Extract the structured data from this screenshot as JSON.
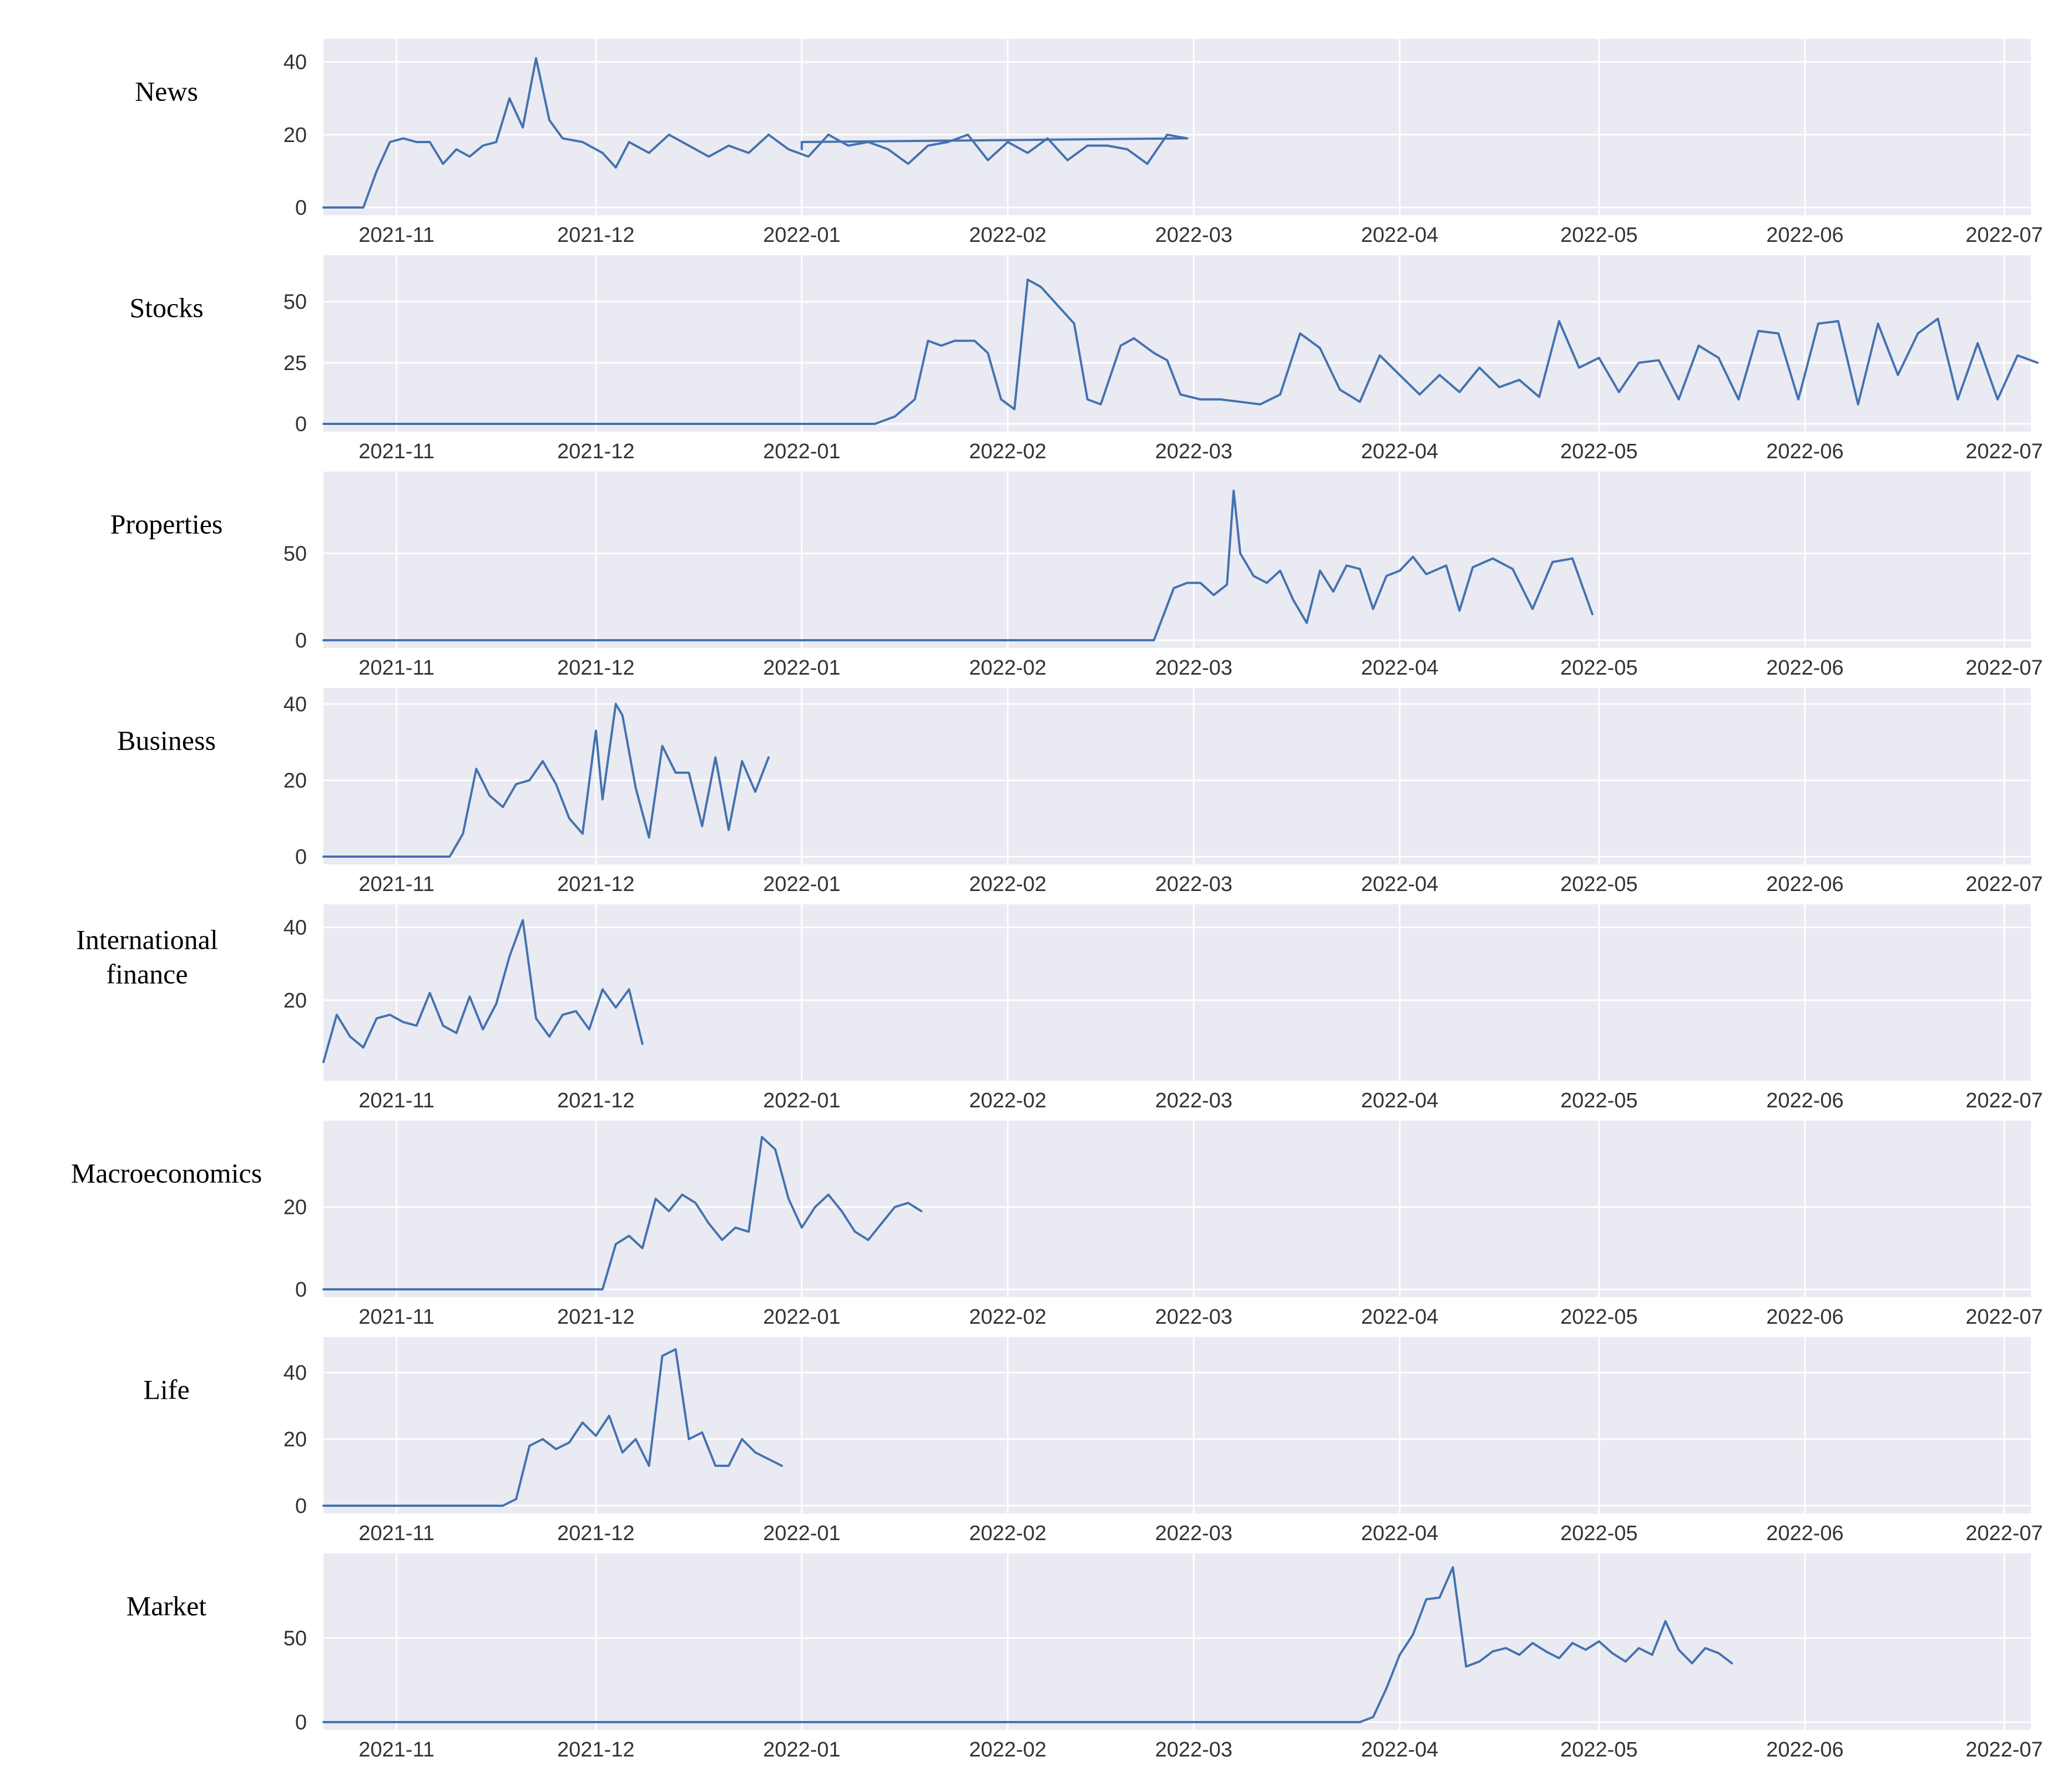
{
  "chart_data": [
    {
      "type": "line",
      "label": "News",
      "ylim": [
        0,
        43
      ],
      "yticks": [
        {
          "value": 0,
          "label": "0"
        },
        {
          "value": 20,
          "label": "20"
        },
        {
          "value": 40,
          "label": "40"
        }
      ],
      "points": [
        [
          "2021-10-21",
          0
        ],
        [
          "2021-10-24",
          0
        ],
        [
          "2021-10-27",
          0
        ],
        [
          "2021-10-29",
          10
        ],
        [
          "2021-10-31",
          18
        ],
        [
          "2021-11-02",
          19
        ],
        [
          "2021-11-04",
          18
        ],
        [
          "2021-11-06",
          18
        ],
        [
          "2021-11-08",
          12
        ],
        [
          "2021-11-10",
          16
        ],
        [
          "2021-11-12",
          14
        ],
        [
          "2021-11-14",
          17
        ],
        [
          "2021-11-16",
          18
        ],
        [
          "2021-11-18",
          30
        ],
        [
          "2021-11-20",
          22
        ],
        [
          "2021-11-22",
          41
        ],
        [
          "2021-11-24",
          24
        ],
        [
          "2021-11-26",
          19
        ],
        [
          "2021-11-29",
          18
        ],
        [
          "2021-12-02",
          15
        ],
        [
          "2021-12-04",
          11
        ],
        [
          "2021-12-06",
          18
        ],
        [
          "2021-12-09",
          15
        ],
        [
          "2021-12-12",
          20
        ],
        [
          "2021-12-15",
          17
        ],
        [
          "2021-12-18",
          14
        ],
        [
          "2021-12-21",
          17
        ],
        [
          "2021-12-24",
          15
        ],
        [
          "2021-12-27",
          20
        ],
        [
          "2021-12-30",
          16
        ],
        [
          "2022-01-02",
          14
        ],
        [
          "2022-01-05",
          20
        ],
        [
          "2022-01-08",
          17
        ],
        [
          "2022-01-11",
          18
        ],
        [
          "2022-01-14",
          16
        ],
        [
          "2022-01-17",
          12
        ],
        [
          "2022-01-20",
          17
        ],
        [
          "2022-01-23",
          18
        ],
        [
          "2022-01-26",
          20
        ],
        [
          "2022-01-29",
          13
        ],
        [
          "2022-02-01",
          18
        ],
        [
          "2022-02-04",
          15
        ],
        [
          "2022-02-07",
          19
        ],
        [
          "2022-02-10",
          13
        ],
        [
          "2022-02-13",
          17
        ],
        [
          "2022-02-16",
          17
        ],
        [
          "2022-02-19",
          16
        ],
        [
          "2022-02-22",
          12
        ],
        [
          "2022-02-25",
          20
        ],
        [
          "2022-02-28",
          19
        ],
        [
          "2022-01-01",
          18
        ],
        [
          "2022-01-01",
          16
        ]
      ],
      "color": "#4472b0"
    },
    {
      "type": "line",
      "label": "Stocks",
      "ylim": [
        0,
        64
      ],
      "yticks": [
        {
          "value": 0,
          "label": "0"
        },
        {
          "value": 25,
          "label": "25"
        },
        {
          "value": 50,
          "label": "50"
        }
      ],
      "points": [
        [
          "2021-10-21",
          0
        ],
        [
          "2022-01-12",
          0
        ],
        [
          "2022-01-15",
          3
        ],
        [
          "2022-01-18",
          10
        ],
        [
          "2022-01-20",
          34
        ],
        [
          "2022-01-22",
          32
        ],
        [
          "2022-01-24",
          34
        ],
        [
          "2022-01-27",
          34
        ],
        [
          "2022-01-29",
          29
        ],
        [
          "2022-01-31",
          10
        ],
        [
          "2022-02-02",
          6
        ],
        [
          "2022-02-04",
          59
        ],
        [
          "2022-02-06",
          56
        ],
        [
          "2022-02-09",
          47
        ],
        [
          "2022-02-11",
          41
        ],
        [
          "2022-02-13",
          10
        ],
        [
          "2022-02-15",
          8
        ],
        [
          "2022-02-18",
          32
        ],
        [
          "2022-02-20",
          35
        ],
        [
          "2022-02-23",
          29
        ],
        [
          "2022-02-25",
          26
        ],
        [
          "2022-02-27",
          12
        ],
        [
          "2022-03-02",
          10
        ],
        [
          "2022-03-05",
          10
        ],
        [
          "2022-03-08",
          9
        ],
        [
          "2022-03-11",
          8
        ],
        [
          "2022-03-14",
          12
        ],
        [
          "2022-03-17",
          37
        ],
        [
          "2022-03-20",
          31
        ],
        [
          "2022-03-23",
          14
        ],
        [
          "2022-03-26",
          9
        ],
        [
          "2022-03-29",
          28
        ],
        [
          "2022-04-01",
          20
        ],
        [
          "2022-04-04",
          12
        ],
        [
          "2022-04-07",
          20
        ],
        [
          "2022-04-10",
          13
        ],
        [
          "2022-04-13",
          23
        ],
        [
          "2022-04-16",
          15
        ],
        [
          "2022-04-19",
          18
        ],
        [
          "2022-04-22",
          11
        ],
        [
          "2022-04-25",
          42
        ],
        [
          "2022-04-28",
          23
        ],
        [
          "2022-05-01",
          27
        ],
        [
          "2022-05-04",
          13
        ],
        [
          "2022-05-07",
          25
        ],
        [
          "2022-05-10",
          26
        ],
        [
          "2022-05-13",
          10
        ],
        [
          "2022-05-16",
          32
        ],
        [
          "2022-05-19",
          27
        ],
        [
          "2022-05-22",
          10
        ],
        [
          "2022-05-25",
          38
        ],
        [
          "2022-05-28",
          37
        ],
        [
          "2022-05-31",
          10
        ],
        [
          "2022-06-03",
          41
        ],
        [
          "2022-06-06",
          42
        ],
        [
          "2022-06-09",
          8
        ],
        [
          "2022-06-12",
          41
        ],
        [
          "2022-06-15",
          20
        ],
        [
          "2022-06-18",
          37
        ],
        [
          "2022-06-21",
          43
        ],
        [
          "2022-06-24",
          10
        ],
        [
          "2022-06-27",
          33
        ],
        [
          "2022-06-30",
          10
        ],
        [
          "2022-07-03",
          28
        ],
        [
          "2022-07-06",
          25
        ]
      ],
      "color": "#4472b0"
    },
    {
      "type": "line",
      "label": "Properties",
      "ylim": [
        0,
        90
      ],
      "yticks": [
        {
          "value": 0,
          "label": "0"
        },
        {
          "value": 50,
          "label": "50"
        }
      ],
      "points": [
        [
          "2021-10-21",
          0
        ],
        [
          "2022-02-23",
          0
        ],
        [
          "2022-02-26",
          30
        ],
        [
          "2022-02-28",
          33
        ],
        [
          "2022-03-02",
          33
        ],
        [
          "2022-03-04",
          26
        ],
        [
          "2022-03-06",
          32
        ],
        [
          "2022-03-07",
          86
        ],
        [
          "2022-03-08",
          50
        ],
        [
          "2022-03-10",
          37
        ],
        [
          "2022-03-12",
          33
        ],
        [
          "2022-03-14",
          40
        ],
        [
          "2022-03-16",
          23
        ],
        [
          "2022-03-18",
          10
        ],
        [
          "2022-03-20",
          40
        ],
        [
          "2022-03-22",
          28
        ],
        [
          "2022-03-24",
          43
        ],
        [
          "2022-03-26",
          41
        ],
        [
          "2022-03-28",
          18
        ],
        [
          "2022-03-30",
          37
        ],
        [
          "2022-04-01",
          40
        ],
        [
          "2022-04-03",
          48
        ],
        [
          "2022-04-05",
          38
        ],
        [
          "2022-04-08",
          43
        ],
        [
          "2022-04-10",
          17
        ],
        [
          "2022-04-12",
          42
        ],
        [
          "2022-04-15",
          47
        ],
        [
          "2022-04-18",
          41
        ],
        [
          "2022-04-21",
          18
        ],
        [
          "2022-04-24",
          45
        ],
        [
          "2022-04-27",
          47
        ],
        [
          "2022-04-30",
          15
        ]
      ],
      "color": "#4472b0"
    },
    {
      "type": "line",
      "label": "Business",
      "ylim": [
        0,
        41
      ],
      "yticks": [
        {
          "value": 0,
          "label": "0"
        },
        {
          "value": 20,
          "label": "20"
        },
        {
          "value": 40,
          "label": "40"
        }
      ],
      "points": [
        [
          "2021-10-21",
          0
        ],
        [
          "2021-11-09",
          0
        ],
        [
          "2021-11-11",
          6
        ],
        [
          "2021-11-13",
          23
        ],
        [
          "2021-11-15",
          16
        ],
        [
          "2021-11-17",
          13
        ],
        [
          "2021-11-19",
          19
        ],
        [
          "2021-11-21",
          20
        ],
        [
          "2021-11-23",
          25
        ],
        [
          "2021-11-25",
          19
        ],
        [
          "2021-11-27",
          10
        ],
        [
          "2021-11-29",
          6
        ],
        [
          "2021-12-01",
          33
        ],
        [
          "2021-12-02",
          15
        ],
        [
          "2021-12-04",
          40
        ],
        [
          "2021-12-05",
          37
        ],
        [
          "2021-12-07",
          18
        ],
        [
          "2021-12-09",
          5
        ],
        [
          "2021-12-11",
          29
        ],
        [
          "2021-12-13",
          22
        ],
        [
          "2021-12-15",
          22
        ],
        [
          "2021-12-17",
          8
        ],
        [
          "2021-12-19",
          26
        ],
        [
          "2021-12-21",
          7
        ],
        [
          "2021-12-23",
          25
        ],
        [
          "2021-12-25",
          17
        ],
        [
          "2021-12-27",
          26
        ]
      ],
      "color": "#4472b0"
    },
    {
      "type": "line",
      "label": "International finance",
      "ylim": [
        0,
        43
      ],
      "yticks": [
        {
          "value": 20,
          "label": "20"
        },
        {
          "value": 40,
          "label": "40"
        }
      ],
      "points": [
        [
          "2021-10-21",
          3
        ],
        [
          "2021-10-23",
          16
        ],
        [
          "2021-10-25",
          10
        ],
        [
          "2021-10-27",
          7
        ],
        [
          "2021-10-29",
          15
        ],
        [
          "2021-10-31",
          16
        ],
        [
          "2021-11-02",
          14
        ],
        [
          "2021-11-04",
          13
        ],
        [
          "2021-11-06",
          22
        ],
        [
          "2021-11-08",
          13
        ],
        [
          "2021-11-10",
          11
        ],
        [
          "2021-11-12",
          21
        ],
        [
          "2021-11-14",
          12
        ],
        [
          "2021-11-16",
          19
        ],
        [
          "2021-11-18",
          32
        ],
        [
          "2021-11-20",
          42
        ],
        [
          "2021-11-22",
          15
        ],
        [
          "2021-11-24",
          10
        ],
        [
          "2021-11-26",
          16
        ],
        [
          "2021-11-28",
          17
        ],
        [
          "2021-11-30",
          12
        ],
        [
          "2021-12-02",
          23
        ],
        [
          "2021-12-04",
          18
        ],
        [
          "2021-12-06",
          23
        ],
        [
          "2021-12-08",
          8
        ]
      ],
      "color": "#4472b0"
    },
    {
      "type": "line",
      "label": "Macroeconomics",
      "ylim": [
        0,
        38
      ],
      "yticks": [
        {
          "value": 0,
          "label": "0"
        },
        {
          "value": 20,
          "label": "20"
        }
      ],
      "points": [
        [
          "2021-10-21",
          0
        ],
        [
          "2021-12-02",
          0
        ],
        [
          "2021-12-04",
          11
        ],
        [
          "2021-12-06",
          13
        ],
        [
          "2021-12-08",
          10
        ],
        [
          "2021-12-10",
          22
        ],
        [
          "2021-12-12",
          19
        ],
        [
          "2021-12-14",
          23
        ],
        [
          "2021-12-16",
          21
        ],
        [
          "2021-12-18",
          16
        ],
        [
          "2021-12-20",
          12
        ],
        [
          "2021-12-22",
          15
        ],
        [
          "2021-12-24",
          14
        ],
        [
          "2021-12-26",
          37
        ],
        [
          "2021-12-28",
          34
        ],
        [
          "2021-12-30",
          22
        ],
        [
          "2022-01-01",
          15
        ],
        [
          "2022-01-03",
          20
        ],
        [
          "2022-01-05",
          23
        ],
        [
          "2022-01-07",
          19
        ],
        [
          "2022-01-09",
          14
        ],
        [
          "2022-01-11",
          12
        ],
        [
          "2022-01-13",
          16
        ],
        [
          "2022-01-15",
          20
        ],
        [
          "2022-01-17",
          21
        ],
        [
          "2022-01-19",
          19
        ]
      ],
      "color": "#4472b0"
    },
    {
      "type": "line",
      "label": "Life",
      "ylim": [
        0,
        47
      ],
      "yticks": [
        {
          "value": 0,
          "label": "0"
        },
        {
          "value": 20,
          "label": "20"
        },
        {
          "value": 40,
          "label": "40"
        }
      ],
      "points": [
        [
          "2021-10-21",
          0
        ],
        [
          "2021-11-17",
          0
        ],
        [
          "2021-11-19",
          2
        ],
        [
          "2021-11-21",
          18
        ],
        [
          "2021-11-23",
          20
        ],
        [
          "2021-11-25",
          17
        ],
        [
          "2021-11-27",
          19
        ],
        [
          "2021-11-29",
          25
        ],
        [
          "2021-12-01",
          21
        ],
        [
          "2021-12-03",
          27
        ],
        [
          "2021-12-05",
          16
        ],
        [
          "2021-12-07",
          20
        ],
        [
          "2021-12-09",
          12
        ],
        [
          "2021-12-11",
          45
        ],
        [
          "2021-12-13",
          47
        ],
        [
          "2021-12-15",
          20
        ],
        [
          "2021-12-17",
          22
        ],
        [
          "2021-12-19",
          12
        ],
        [
          "2021-12-21",
          12
        ],
        [
          "2021-12-23",
          20
        ],
        [
          "2021-12-25",
          16
        ],
        [
          "2021-12-27",
          14
        ],
        [
          "2021-12-29",
          12
        ]
      ],
      "color": "#4472b0"
    },
    {
      "type": "line",
      "label": "Market",
      "ylim": [
        0,
        93
      ],
      "yticks": [
        {
          "value": 0,
          "label": "0"
        },
        {
          "value": 50,
          "label": "50"
        }
      ],
      "points": [
        [
          "2021-10-21",
          0
        ],
        [
          "2022-03-26",
          0
        ],
        [
          "2022-03-28",
          3
        ],
        [
          "2022-03-30",
          20
        ],
        [
          "2022-04-01",
          40
        ],
        [
          "2022-04-03",
          52
        ],
        [
          "2022-04-05",
          73
        ],
        [
          "2022-04-07",
          74
        ],
        [
          "2022-04-09",
          92
        ],
        [
          "2022-04-11",
          33
        ],
        [
          "2022-04-13",
          36
        ],
        [
          "2022-04-15",
          42
        ],
        [
          "2022-04-17",
          44
        ],
        [
          "2022-04-19",
          40
        ],
        [
          "2022-04-21",
          47
        ],
        [
          "2022-04-23",
          42
        ],
        [
          "2022-04-25",
          38
        ],
        [
          "2022-04-27",
          47
        ],
        [
          "2022-04-29",
          43
        ],
        [
          "2022-05-01",
          48
        ],
        [
          "2022-05-03",
          41
        ],
        [
          "2022-05-05",
          36
        ],
        [
          "2022-05-07",
          44
        ],
        [
          "2022-05-09",
          40
        ],
        [
          "2022-05-11",
          60
        ],
        [
          "2022-05-13",
          43
        ],
        [
          "2022-05-15",
          35
        ],
        [
          "2022-05-17",
          44
        ],
        [
          "2022-05-19",
          41
        ],
        [
          "2022-05-21",
          35
        ]
      ],
      "color": "#4472b0"
    }
  ],
  "x_axis": {
    "start": "2021-10-21",
    "end": "2022-07-05",
    "tick_labels": [
      {
        "date": "2021-11-01",
        "label": "2021-11"
      },
      {
        "date": "2021-12-01",
        "label": "2021-12"
      },
      {
        "date": "2022-01-01",
        "label": "2022-01"
      },
      {
        "date": "2022-02-01",
        "label": "2022-02"
      },
      {
        "date": "2022-03-01",
        "label": "2022-03"
      },
      {
        "date": "2022-04-01",
        "label": "2022-04"
      },
      {
        "date": "2022-05-01",
        "label": "2022-05"
      },
      {
        "date": "2022-06-01",
        "label": "2022-06"
      },
      {
        "date": "2022-07-01",
        "label": "2022-07"
      }
    ]
  },
  "style": {
    "grid": true,
    "legend": "none",
    "panel_background": "#eaeaf2"
  }
}
